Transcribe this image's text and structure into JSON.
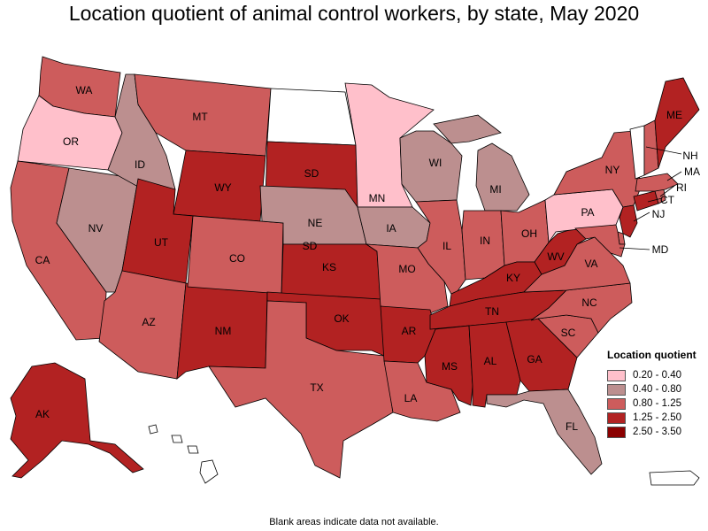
{
  "title": "Location quotient of animal control workers, by state, May 2020",
  "footnote": "Blank areas indicate data not available.",
  "legend": {
    "title": "Location quotient",
    "bins": [
      {
        "label": "0.20 - 0.40",
        "color": "#ffc0cb"
      },
      {
        "label": "0.40 - 0.80",
        "color": "#bc8f8f"
      },
      {
        "label": "0.80 - 1.25",
        "color": "#cd5c5c"
      },
      {
        "label": "1.25 - 2.50",
        "color": "#b22222"
      },
      {
        "label": "2.50 - 3.50",
        "color": "#8b0000"
      }
    ]
  },
  "no_data_color": "#ffffff",
  "states": {
    "WA": 2,
    "OR": 0,
    "CA": 2,
    "NV": 1,
    "ID": 1,
    "MT": 2,
    "WY": 3,
    "UT": 3,
    "AZ": 2,
    "NM": 3,
    "CO": 2,
    "ND": null,
    "SD": 3,
    "NE": 1,
    "KS": 3,
    "OK": 3,
    "TX": 2,
    "MN": 0,
    "IA": 1,
    "MO": 2,
    "AR": 3,
    "LA": 2,
    "WI": 1,
    "IL": 2,
    "MI": 1,
    "IN": 2,
    "OH": 2,
    "KY": 3,
    "TN": 3,
    "MS": 3,
    "AL": 3,
    "GA": 3,
    "FL": 1,
    "SC": 2,
    "NC": 2,
    "VA": 2,
    "WV": 3,
    "PA": 0,
    "NY": 2,
    "VT": null,
    "NH": 2,
    "ME": 3,
    "MA": 2,
    "RI": 2,
    "CT": 3,
    "NJ": 3,
    "DE": 2,
    "MD": 2,
    "AK": 3,
    "HI": null,
    "PR": null
  },
  "callouts": [
    "NH",
    "MA",
    "RI",
    "CT",
    "NJ",
    "MD"
  ]
}
